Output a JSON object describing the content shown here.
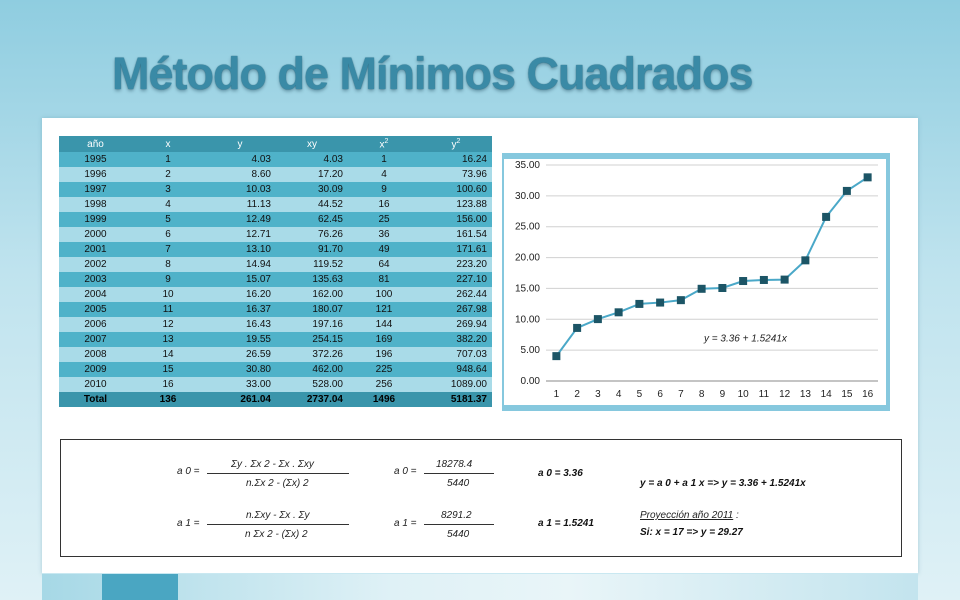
{
  "title": "Método de Mínimos Cuadrados",
  "table": {
    "headers": [
      "año",
      "x",
      "y",
      "xy",
      "x2",
      "y2"
    ],
    "header_base": {
      "x2": "x",
      "y2": "y"
    },
    "header_sup": "2",
    "rows": [
      [
        "1995",
        "1",
        "4.03",
        "4.03",
        "1",
        "16.24"
      ],
      [
        "1996",
        "2",
        "8.60",
        "17.20",
        "4",
        "73.96"
      ],
      [
        "1997",
        "3",
        "10.03",
        "30.09",
        "9",
        "100.60"
      ],
      [
        "1998",
        "4",
        "11.13",
        "44.52",
        "16",
        "123.88"
      ],
      [
        "1999",
        "5",
        "12.49",
        "62.45",
        "25",
        "156.00"
      ],
      [
        "2000",
        "6",
        "12.71",
        "76.26",
        "36",
        "161.54"
      ],
      [
        "2001",
        "7",
        "13.10",
        "91.70",
        "49",
        "171.61"
      ],
      [
        "2002",
        "8",
        "14.94",
        "119.52",
        "64",
        "223.20"
      ],
      [
        "2003",
        "9",
        "15.07",
        "135.63",
        "81",
        "227.10"
      ],
      [
        "2004",
        "10",
        "16.20",
        "162.00",
        "100",
        "262.44"
      ],
      [
        "2005",
        "11",
        "16.37",
        "180.07",
        "121",
        "267.98"
      ],
      [
        "2006",
        "12",
        "16.43",
        "197.16",
        "144",
        "269.94"
      ],
      [
        "2007",
        "13",
        "19.55",
        "254.15",
        "169",
        "382.20"
      ],
      [
        "2008",
        "14",
        "26.59",
        "372.26",
        "196",
        "707.03"
      ],
      [
        "2009",
        "15",
        "30.80",
        "462.00",
        "225",
        "948.64"
      ],
      [
        "2010",
        "16",
        "33.00",
        "528.00",
        "256",
        "1089.00"
      ]
    ],
    "total": [
      "Total",
      "136",
      "261.04",
      "2737.04",
      "1496",
      "5181.37"
    ]
  },
  "chart_data": {
    "type": "line",
    "x": [
      1,
      2,
      3,
      4,
      5,
      6,
      7,
      8,
      9,
      10,
      11,
      12,
      13,
      14,
      15,
      16
    ],
    "y": [
      4.03,
      8.6,
      10.03,
      11.13,
      12.49,
      12.71,
      13.1,
      14.94,
      15.07,
      16.2,
      16.37,
      16.43,
      19.55,
      26.59,
      30.8,
      33.0
    ],
    "ylim": [
      0,
      35
    ],
    "yticks": [
      "0.00",
      "5.00",
      "10.00",
      "15.00",
      "20.00",
      "25.00",
      "30.00",
      "35.00"
    ],
    "xticks": [
      "1",
      "2",
      "3",
      "4",
      "5",
      "6",
      "7",
      "8",
      "9",
      "10",
      "11",
      "12",
      "13",
      "14",
      "15",
      "16"
    ],
    "annotation": "y = 3.36 + 1.5241x",
    "line_color": "#4aa8c8",
    "marker_color": "#1c5566",
    "grid": true
  },
  "formulas": {
    "a0_lhs": "a 0  =",
    "a0_num": "Σy . Σx 2  - Σx . Σxy",
    "a0_den": "n.Σx 2  - (Σx) 2",
    "a0_lhs2": "a 0  =",
    "a0_num2": "18278.4",
    "a0_den2": "5440",
    "a0_result": "a 0  =   3.36",
    "a1_lhs": "a 1  =",
    "a1_num": "n.Σxy - Σx . Σy",
    "a1_den": "n Σx 2  - (Σx) 2",
    "a1_lhs2": "a 1  =",
    "a1_num2": "8291.2",
    "a1_den2": "5440",
    "a1_result": "a 1  =  1.5241",
    "equation": "y = a 0  + a 1 x     =>   y = 3.36 + 1.5241x",
    "projection_title": "Proyección año 2011",
    "projection_colon": " :",
    "projection_value": "Si: x = 17  =>  y = 29.27"
  }
}
